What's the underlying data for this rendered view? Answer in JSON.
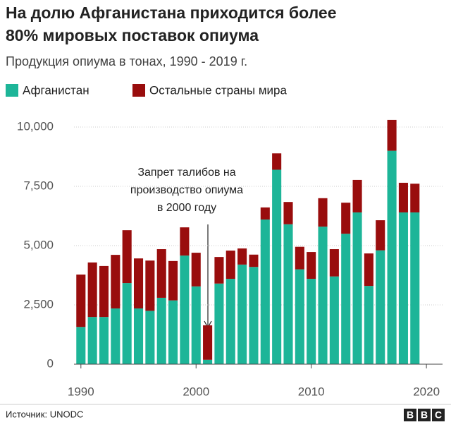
{
  "chart_data": {
    "type": "stacked-bar",
    "title": [
      "На долю Афганистана приходится более",
      "80% мировых поставок опиума"
    ],
    "subtitle": "Продукция опиума в тонах, 1990 - 2019 г.",
    "annotation": [
      "Запрет талибов на",
      "производство опиума",
      "в 2000 году"
    ],
    "source": "Источник: UNODC",
    "logo": [
      "B",
      "B",
      "C"
    ],
    "x": [
      1990,
      1991,
      1992,
      1993,
      1994,
      1995,
      1996,
      1997,
      1998,
      1999,
      2000,
      2001,
      2002,
      2003,
      2004,
      2005,
      2006,
      2007,
      2008,
      2009,
      2010,
      2011,
      2012,
      2013,
      2014,
      2015,
      2016,
      2017,
      2018,
      2019
    ],
    "series": [
      {
        "name": "Афганистан",
        "color": "#1db598",
        "values": [
          1570,
          1990,
          1990,
          2350,
          3420,
          2350,
          2250,
          2800,
          2690,
          4580,
          3280,
          185,
          3400,
          3600,
          4200,
          4100,
          6100,
          8200,
          5900,
          4000,
          3600,
          5800,
          3700,
          5500,
          6400,
          3300,
          4800,
          9000,
          6400,
          6400
        ]
      },
      {
        "name": "Остальные страны мира",
        "color": "#990d0d",
        "values": [
          2210,
          2300,
          2150,
          2260,
          2230,
          2110,
          2120,
          2050,
          1660,
          1190,
          1420,
          1455,
          1120,
          1190,
          680,
          520,
          510,
          690,
          940,
          950,
          1130,
          1200,
          1150,
          1310,
          1370,
          1370,
          1270,
          1300,
          1250,
          1210
        ]
      }
    ],
    "xlim": [
      1989.4,
      2021.4
    ],
    "xticks": [
      1990,
      2000,
      2010,
      2020
    ],
    "ylim": [
      0,
      10000
    ],
    "yticks": [
      0,
      {
        "value": 2500,
        "label": "2,500"
      },
      {
        "value": 5000,
        "label": "5,000"
      },
      {
        "value": 7500,
        "label": "7,500"
      },
      {
        "value": 10000,
        "label": "10,000"
      }
    ],
    "grid": true
  }
}
